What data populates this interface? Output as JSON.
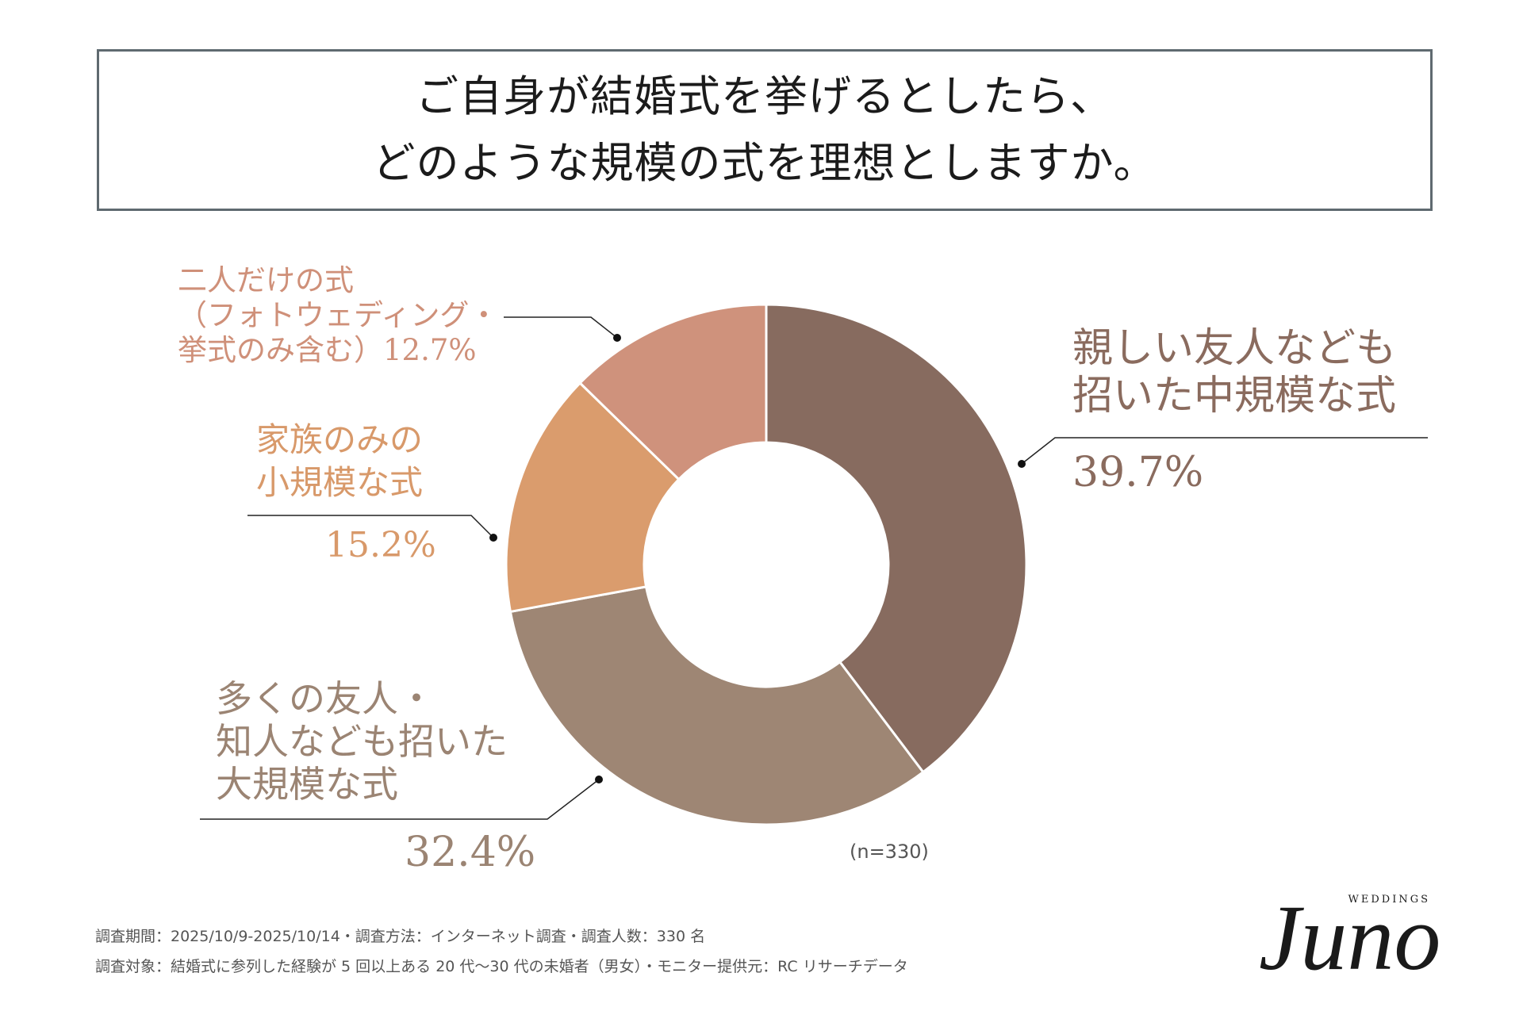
{
  "title": {
    "line1": "ご自身が結婚式を挙げるとしたら、",
    "line2": "どのような規模の式を理想としますか。"
  },
  "chart_data": {
    "type": "pie",
    "style": "donut",
    "title": "ご自身が結婚式を挙げるとしたら、どのような規模の式を理想としますか。",
    "unit": "%",
    "categories": [
      [
        "親しい友人なども",
        "招いた中規模な式"
      ],
      [
        "多くの友人・",
        "知人なども招いた",
        "大規模な式"
      ],
      [
        "家族のみの",
        "小規模な式"
      ],
      [
        "二人だけの式",
        "（フォトウェディング・",
        "挙式のみ含む）12.7%"
      ]
    ],
    "values": [
      39.7,
      32.4,
      15.2,
      12.7
    ],
    "value_labels": [
      "39.7%",
      "32.4%",
      "15.2%",
      ""
    ],
    "colors": [
      "#876b5f",
      "#9e8674",
      "#da9c6d",
      "#cf927c"
    ],
    "sample_note": "(n=330)"
  },
  "footnotes": [
    "調査期間：2025/10/9-2025/10/14・調査方法：インターネット調査・調査人数：330 名",
    "調査対象：結婚式に参列した経験が 5 回以上ある 20 代〜30 代の未婚者（男女）・モニター提供元：RC リサーチデータ"
  ],
  "logo": {
    "script": "Juno",
    "sub": "WEDDINGS",
    "color": "#1a1a1a"
  }
}
